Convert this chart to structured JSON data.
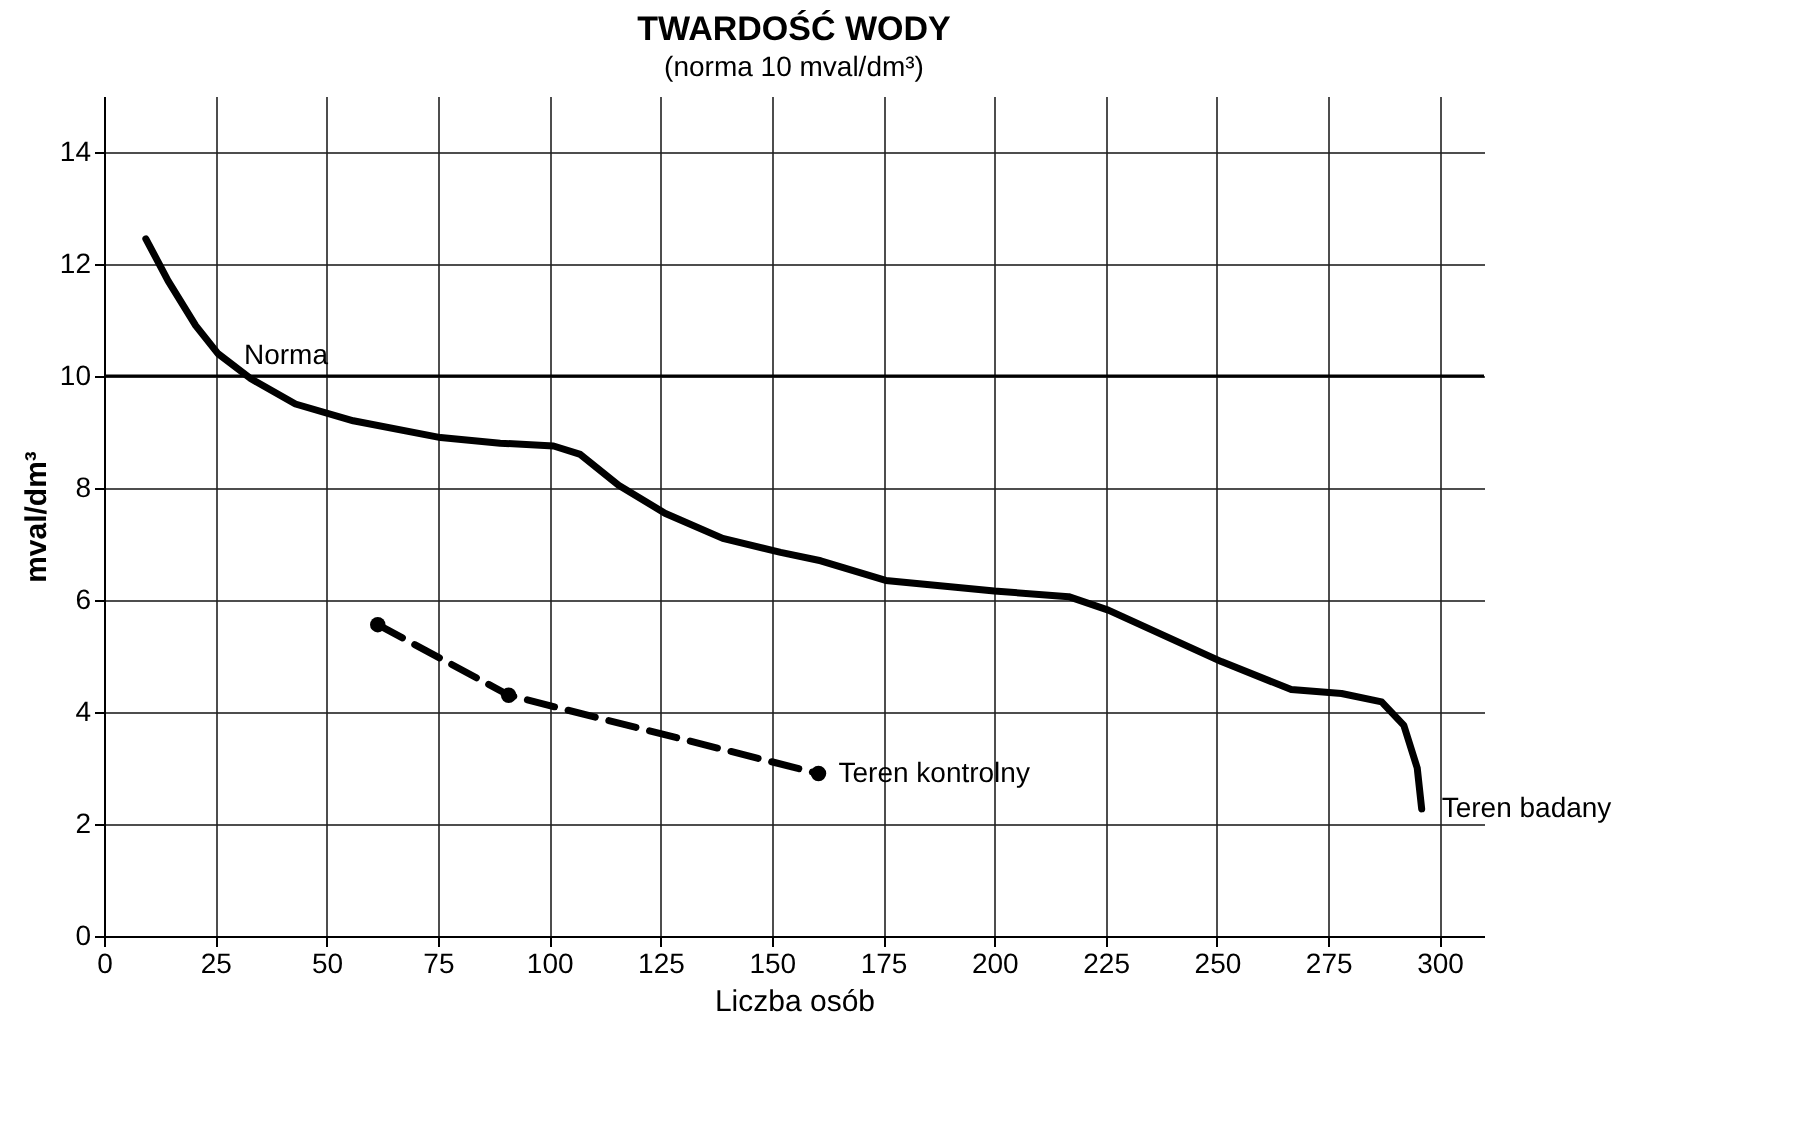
{
  "chart_data": {
    "type": "line",
    "title": "TWARDOŚĆ WODY",
    "subtitle": "(norma 10 mval/dm³)",
    "xlabel": "Liczba osób",
    "ylabel": "mval/dm³",
    "xlim": [
      0,
      310
    ],
    "xticks": [
      0,
      25,
      50,
      75,
      100,
      125,
      150,
      175,
      200,
      225,
      250,
      275,
      300
    ],
    "ylim": [
      0,
      15
    ],
    "yticks": [
      0,
      2,
      4,
      6,
      8,
      10,
      12,
      14
    ],
    "grid": true,
    "ref_lines": [
      {
        "axis": "y",
        "value": 10,
        "label": "Norma",
        "color": "#000000"
      }
    ],
    "series": [
      {
        "name": "Teren badany",
        "color": "#000000",
        "line_style": "solid",
        "marker": "none",
        "x": [
          9.4,
          14.4,
          20.6,
          25.6,
          33,
          43,
          56,
          75.6,
          89,
          101,
          107,
          115.6,
          126,
          139,
          152,
          161,
          175.6,
          200,
          216.7,
          225.6,
          251,
          266.7,
          278,
          287,
          292,
          295,
          296
        ],
        "values": [
          12.45,
          11.7,
          10.9,
          10.4,
          9.95,
          9.5,
          9.2,
          8.9,
          8.8,
          8.75,
          8.6,
          8.05,
          7.55,
          7.1,
          6.85,
          6.7,
          6.35,
          6.16,
          6.06,
          5.82,
          4.9,
          4.4,
          4.33,
          4.18,
          3.76,
          3.0,
          2.27
        ]
      },
      {
        "name": "Teren kontrolny",
        "color": "#000000",
        "line_style": "dashed",
        "marker": "circle",
        "x": [
          61.5,
          90.9,
          160.5
        ],
        "values": [
          5.56,
          4.3,
          2.9
        ]
      }
    ]
  }
}
